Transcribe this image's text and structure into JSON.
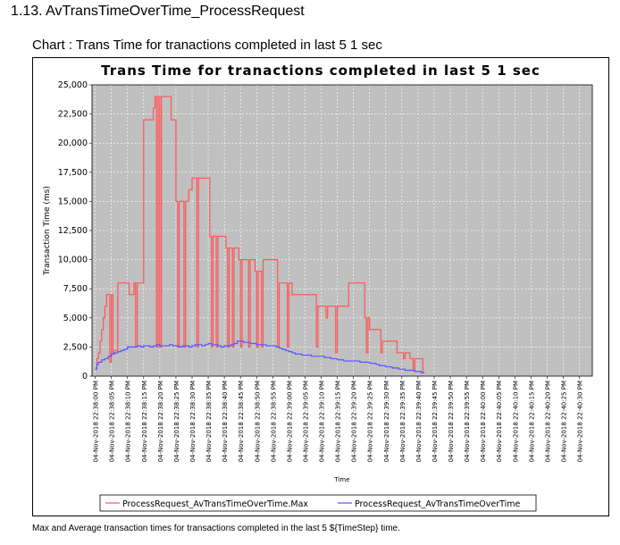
{
  "section": {
    "heading": "1.13. AvTransTimeOverTime_ProcessRequest"
  },
  "chart_label": "Chart : Trans Time for tranactions completed in last 5 1 sec",
  "caption": "Max and Average transaction times for transactions completed in the last 5 ${TimeStep} time.",
  "chart_data": {
    "type": "line",
    "title": "Trans Time for tranactions completed in last 5 1 sec",
    "xlabel": "Time",
    "ylabel": "Transaction Time (ms)",
    "ylim": [
      0,
      25000
    ],
    "xlim_seconds": [
      -1,
      154
    ],
    "y_ticks": [
      0,
      2500,
      5000,
      7500,
      10000,
      12500,
      15000,
      17500,
      20000,
      22500,
      25000
    ],
    "y_tick_labels": [
      "0",
      "2,500",
      "5,000",
      "7,500",
      "10,000",
      "12,500",
      "15,000",
      "17,500",
      "20,000",
      "22,500",
      "25,000"
    ],
    "x_tick_labels": [
      "04-Nov-2018 22:38:00 PM",
      "04-Nov-2018 22:38:05 PM",
      "04-Nov-2018 22:38:10 PM",
      "04-Nov-2018 22:38:15 PM",
      "04-Nov-2018 22:38:20 PM",
      "04-Nov-2018 22:38:25 PM",
      "04-Nov-2018 22:38:30 PM",
      "04-Nov-2018 22:38:35 PM",
      "04-Nov-2018 22:38:40 PM",
      "04-Nov-2018 22:38:45 PM",
      "04-Nov-2018 22:38:50 PM",
      "04-Nov-2018 22:38:55 PM",
      "04-Nov-2018 22:39:00 PM",
      "04-Nov-2018 22:39:05 PM",
      "04-Nov-2018 22:39:10 PM",
      "04-Nov-2018 22:39:15 PM",
      "04-Nov-2018 22:39:20 PM",
      "04-Nov-2018 22:39:25 PM",
      "04-Nov-2018 22:39:30 PM",
      "04-Nov-2018 22:39:35 PM",
      "04-Nov-2018 22:39:40 PM",
      "04-Nov-2018 22:39:45 PM",
      "04-Nov-2018 22:39:50 PM",
      "04-Nov-2018 22:39:55 PM",
      "04-Nov-2018 22:40:00 PM",
      "04-Nov-2018 22:40:05 PM",
      "04-Nov-2018 22:40:10 PM",
      "04-Nov-2018 22:40:15 PM",
      "04-Nov-2018 22:40:20 PM",
      "04-Nov-2018 22:40:25 PM",
      "04-Nov-2018 22:40:30 PM"
    ],
    "x_tick_values": [
      0,
      5,
      10,
      15,
      20,
      25,
      30,
      35,
      40,
      45,
      50,
      55,
      60,
      65,
      70,
      75,
      80,
      85,
      90,
      95,
      100,
      105,
      110,
      115,
      120,
      125,
      130,
      135,
      140,
      145,
      150
    ],
    "background": "#c0c0c0",
    "grid": true,
    "legend_position": "bottom",
    "series": [
      {
        "name": "ProcessRequest_AvTransTimeOverTime.Max",
        "color": "#ff5555",
        "points": [
          [
            0,
            700
          ],
          [
            0.5,
            1500
          ],
          [
            1,
            2000
          ],
          [
            1.5,
            3000
          ],
          [
            2,
            4000
          ],
          [
            2.5,
            5000
          ],
          [
            3,
            6000
          ],
          [
            3.5,
            7000
          ],
          [
            4,
            7000
          ],
          [
            4.5,
            1200
          ],
          [
            5,
            7000
          ],
          [
            5.5,
            2000
          ],
          [
            6,
            2200
          ],
          [
            7,
            8000
          ],
          [
            9,
            8000
          ],
          [
            10,
            8000
          ],
          [
            10.5,
            7000
          ],
          [
            11,
            7000
          ],
          [
            12,
            8000
          ],
          [
            12.5,
            2500
          ],
          [
            13,
            8000
          ],
          [
            14,
            8000
          ],
          [
            15,
            22000
          ],
          [
            17,
            22000
          ],
          [
            18,
            23000
          ],
          [
            18.5,
            24000
          ],
          [
            19,
            2500
          ],
          [
            19.5,
            24000
          ],
          [
            20,
            2500
          ],
          [
            20.5,
            24000
          ],
          [
            21,
            24000
          ],
          [
            23,
            24000
          ],
          [
            23.5,
            22000
          ],
          [
            24,
            22000
          ],
          [
            25,
            15000
          ],
          [
            25.5,
            2500
          ],
          [
            26,
            15000
          ],
          [
            27,
            15000
          ],
          [
            27.5,
            2500
          ],
          [
            28,
            15000
          ],
          [
            29,
            16000
          ],
          [
            30,
            17000
          ],
          [
            31,
            17000
          ],
          [
            31.5,
            2500
          ],
          [
            32,
            17000
          ],
          [
            35,
            17000
          ],
          [
            35.5,
            12000
          ],
          [
            36,
            2500
          ],
          [
            36.5,
            12000
          ],
          [
            37,
            12000
          ],
          [
            37.5,
            2500
          ],
          [
            38,
            12000
          ],
          [
            40,
            12000
          ],
          [
            40.5,
            11000
          ],
          [
            41,
            2500
          ],
          [
            41.5,
            11000
          ],
          [
            42,
            11000
          ],
          [
            42.5,
            2500
          ],
          [
            43,
            11000
          ],
          [
            44,
            11000
          ],
          [
            44.5,
            10000
          ],
          [
            45,
            2500
          ],
          [
            45.5,
            10000
          ],
          [
            47,
            10000
          ],
          [
            47.5,
            2500
          ],
          [
            48,
            10000
          ],
          [
            49,
            10000
          ],
          [
            49.5,
            9000
          ],
          [
            50,
            2500
          ],
          [
            50.5,
            9000
          ],
          [
            51,
            9000
          ],
          [
            51.5,
            2500
          ],
          [
            52,
            10000
          ],
          [
            56,
            10000
          ],
          [
            56.5,
            2500
          ],
          [
            57,
            8000
          ],
          [
            59,
            8000
          ],
          [
            59.5,
            2500
          ],
          [
            60,
            8000
          ],
          [
            61,
            7000
          ],
          [
            68,
            7000
          ],
          [
            68.5,
            2500
          ],
          [
            69,
            6000
          ],
          [
            71,
            6000
          ],
          [
            71.5,
            5000
          ],
          [
            72,
            6000
          ],
          [
            74,
            6000
          ],
          [
            74.5,
            2000
          ],
          [
            75,
            6000
          ],
          [
            78,
            6000
          ],
          [
            78.5,
            8000
          ],
          [
            83,
            8000
          ],
          [
            83.5,
            5000
          ],
          [
            84,
            2000
          ],
          [
            84.5,
            5000
          ],
          [
            85,
            4000
          ],
          [
            88,
            4000
          ],
          [
            88.5,
            2000
          ],
          [
            89,
            3000
          ],
          [
            93,
            3000
          ],
          [
            93.5,
            2000
          ],
          [
            95,
            2000
          ],
          [
            95.5,
            1500
          ],
          [
            96,
            2000
          ],
          [
            97,
            2000
          ],
          [
            97.5,
            1500
          ],
          [
            98,
            1500
          ],
          [
            98.5,
            500
          ],
          [
            99,
            1500
          ],
          [
            101,
            1500
          ],
          [
            101.5,
            300
          ],
          [
            102,
            300
          ]
        ]
      },
      {
        "name": "ProcessRequest_AvTransTimeOverTime",
        "color": "#5555ff",
        "points": [
          [
            0,
            600
          ],
          [
            0.5,
            1000
          ],
          [
            1,
            1200
          ],
          [
            2,
            1400
          ],
          [
            3,
            1500
          ],
          [
            4,
            1700
          ],
          [
            5,
            1900
          ],
          [
            6,
            2000
          ],
          [
            7,
            2100
          ],
          [
            8,
            2200
          ],
          [
            9,
            2300
          ],
          [
            10,
            2500
          ],
          [
            11,
            2500
          ],
          [
            12,
            2500
          ],
          [
            13,
            2600
          ],
          [
            14,
            2500
          ],
          [
            15,
            2600
          ],
          [
            16,
            2600
          ],
          [
            17,
            2500
          ],
          [
            18,
            2600
          ],
          [
            19,
            2700
          ],
          [
            20,
            2600
          ],
          [
            21,
            2600
          ],
          [
            22,
            2600
          ],
          [
            23,
            2700
          ],
          [
            24,
            2600
          ],
          [
            25,
            2600
          ],
          [
            26,
            2500
          ],
          [
            27,
            2600
          ],
          [
            28,
            2600
          ],
          [
            29,
            2500
          ],
          [
            30,
            2600
          ],
          [
            31,
            2700
          ],
          [
            32,
            2700
          ],
          [
            33,
            2600
          ],
          [
            34,
            2700
          ],
          [
            35,
            2800
          ],
          [
            36,
            2700
          ],
          [
            37,
            2700
          ],
          [
            38,
            2600
          ],
          [
            39,
            2500
          ],
          [
            40,
            2600
          ],
          [
            41,
            2600
          ],
          [
            42,
            2700
          ],
          [
            43,
            2800
          ],
          [
            44,
            3000
          ],
          [
            45,
            3000
          ],
          [
            46,
            2900
          ],
          [
            47,
            2900
          ],
          [
            48,
            2800
          ],
          [
            49,
            2800
          ],
          [
            50,
            2700
          ],
          [
            51,
            2700
          ],
          [
            52,
            2700
          ],
          [
            53,
            2600
          ],
          [
            54,
            2600
          ],
          [
            55,
            2600
          ],
          [
            56,
            2500
          ],
          [
            57,
            2400
          ],
          [
            58,
            2300
          ],
          [
            59,
            2200
          ],
          [
            60,
            2100
          ],
          [
            61,
            2000
          ],
          [
            62,
            1900
          ],
          [
            63,
            1900
          ],
          [
            64,
            1800
          ],
          [
            65,
            1800
          ],
          [
            66,
            1800
          ],
          [
            67,
            1700
          ],
          [
            68,
            1700
          ],
          [
            69,
            1700
          ],
          [
            70,
            1700
          ],
          [
            71,
            1600
          ],
          [
            72,
            1600
          ],
          [
            73,
            1500
          ],
          [
            74,
            1500
          ],
          [
            75,
            1400
          ],
          [
            76,
            1400
          ],
          [
            77,
            1300
          ],
          [
            78,
            1300
          ],
          [
            79,
            1300
          ],
          [
            80,
            1300
          ],
          [
            81,
            1300
          ],
          [
            82,
            1200
          ],
          [
            83,
            1200
          ],
          [
            84,
            1200
          ],
          [
            85,
            1100
          ],
          [
            86,
            1100
          ],
          [
            87,
            1000
          ],
          [
            88,
            900
          ],
          [
            89,
            900
          ],
          [
            90,
            800
          ],
          [
            91,
            800
          ],
          [
            92,
            700
          ],
          [
            93,
            700
          ],
          [
            94,
            600
          ],
          [
            95,
            600
          ],
          [
            96,
            500
          ],
          [
            97,
            500
          ],
          [
            98,
            500
          ],
          [
            99,
            400
          ],
          [
            100,
            400
          ],
          [
            101,
            300
          ],
          [
            102,
            300
          ]
        ]
      }
    ]
  }
}
